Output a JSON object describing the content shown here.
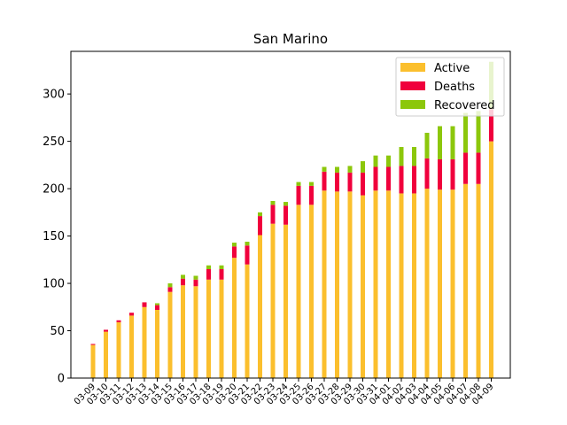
{
  "chart_data": {
    "type": "bar",
    "stacked": true,
    "title": "San Marino",
    "xlabel": "",
    "ylabel": "",
    "categories": [
      "03-09",
      "03-10",
      "03-11",
      "03-12",
      "03-13",
      "03-14",
      "03-15",
      "03-16",
      "03-17",
      "03-18",
      "03-19",
      "03-20",
      "03-21",
      "03-22",
      "03-23",
      "03-24",
      "03-25",
      "03-26",
      "03-27",
      "03-28",
      "03-29",
      "03-30",
      "03-31",
      "04-01",
      "04-02",
      "04-03",
      "04-04",
      "04-05",
      "04-06",
      "04-07",
      "04-08",
      "04-09"
    ],
    "ylim": [
      0,
      345
    ],
    "yticks": [
      0,
      50,
      100,
      150,
      200,
      250,
      300
    ],
    "legend": {
      "position": "top-right"
    },
    "grid": false,
    "series": [
      {
        "name": "Active",
        "color": "#fbbf2d",
        "values": [
          35,
          49,
          59,
          66,
          75,
          72,
          91,
          98,
          97,
          104,
          104,
          127,
          120,
          151,
          163,
          162,
          183,
          183,
          198,
          197,
          197,
          193,
          198,
          198,
          195,
          195,
          200,
          199,
          199,
          205,
          205,
          250
        ]
      },
      {
        "name": "Deaths",
        "color": "#f0003c",
        "values": [
          1,
          2,
          2,
          3,
          5,
          5,
          5,
          7,
          7,
          11,
          11,
          12,
          20,
          20,
          20,
          20,
          20,
          20,
          20,
          20,
          20,
          24,
          25,
          25,
          29,
          29,
          32,
          32,
          32,
          33,
          33,
          34
        ]
      },
      {
        "name": "Recovered",
        "color": "#8cc70b",
        "values": [
          0,
          0,
          0,
          0,
          0,
          2,
          4,
          4,
          4,
          4,
          4,
          4,
          4,
          4,
          4,
          4,
          4,
          4,
          5,
          6,
          7,
          12,
          12,
          12,
          20,
          20,
          27,
          35,
          35,
          42,
          44,
          50
        ]
      }
    ]
  }
}
